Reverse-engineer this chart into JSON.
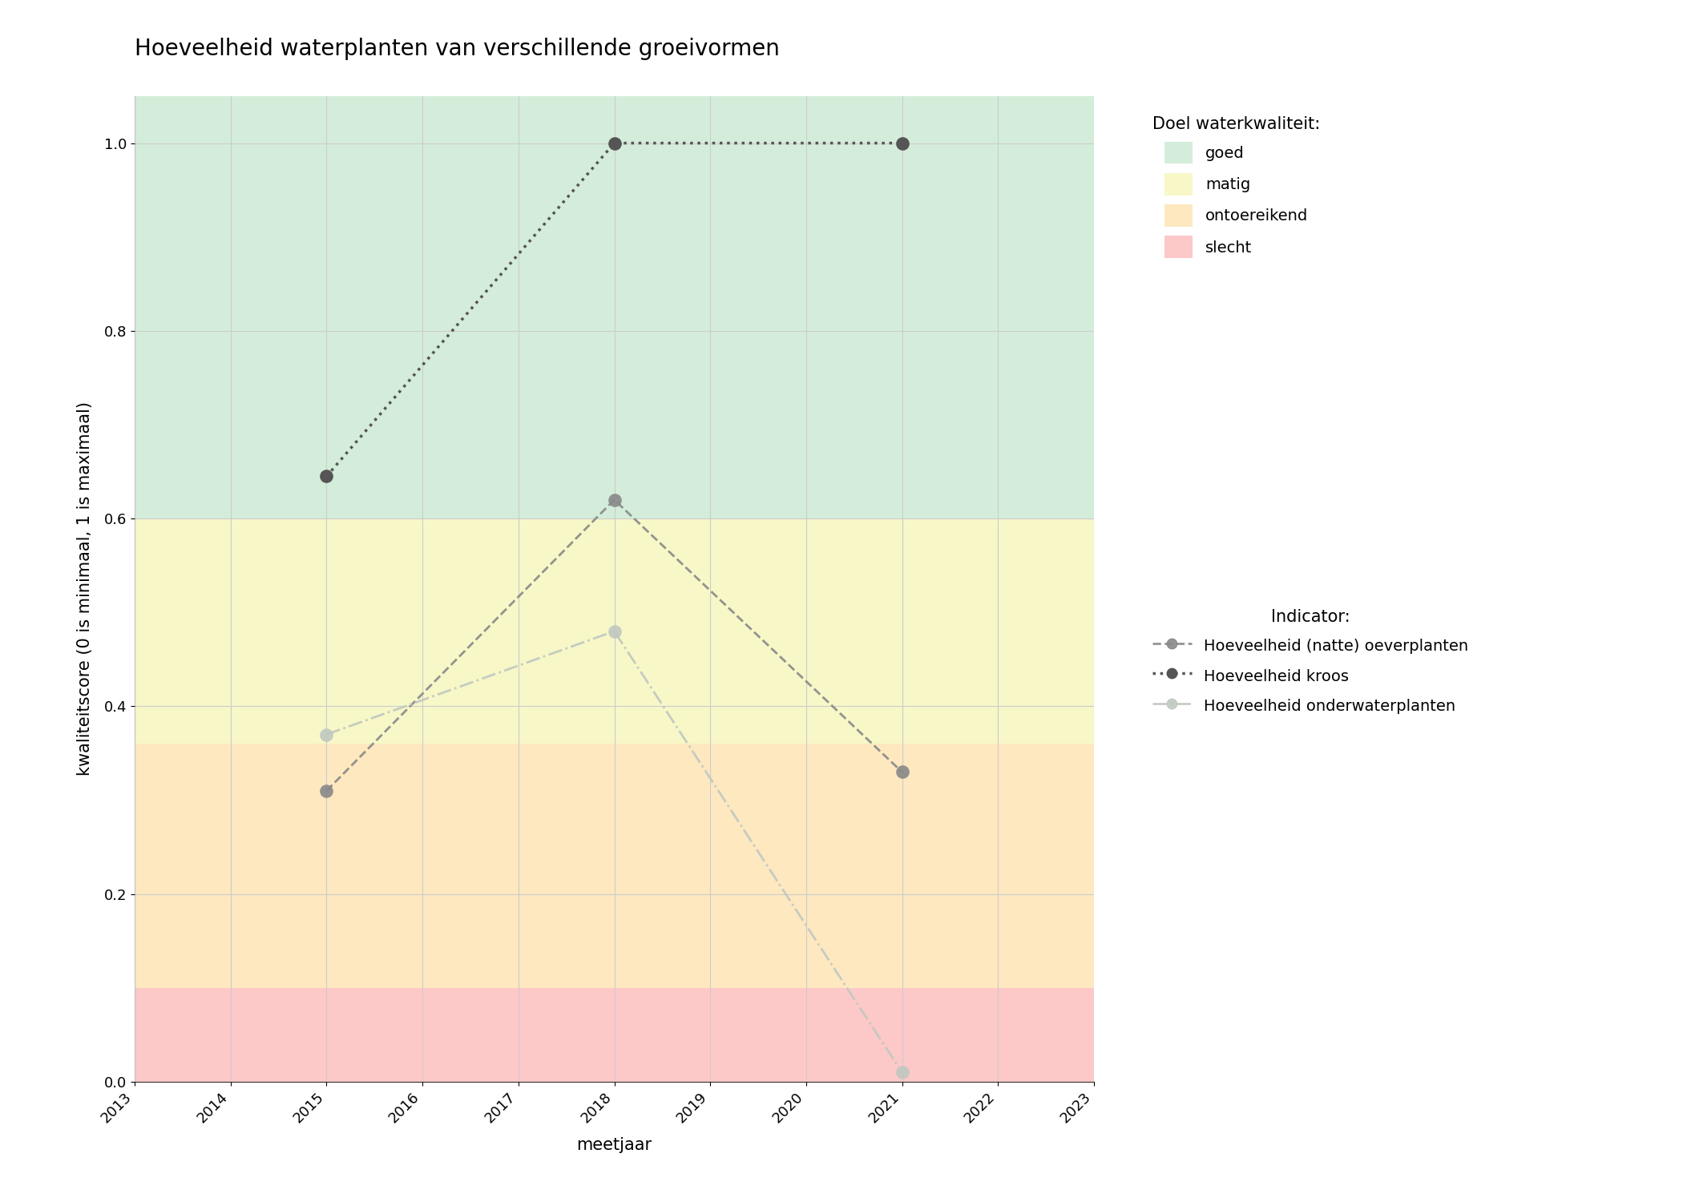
{
  "title": "Hoeveelheid waterplanten van verschillende groeivormen",
  "xlabel": "meetjaar",
  "ylabel": "kwaliteitscore (0 is minimaal, 1 is maximaal)",
  "xlim": [
    2013,
    2023
  ],
  "ylim": [
    0,
    1.05
  ],
  "xticks": [
    2013,
    2014,
    2015,
    2016,
    2017,
    2018,
    2019,
    2020,
    2021,
    2022,
    2023
  ],
  "yticks": [
    0.0,
    0.2,
    0.4,
    0.6,
    0.8,
    1.0
  ],
  "bg_colors": {
    "goed": "#d4edda",
    "matig": "#f7f7c8",
    "ontoereikend": "#fde8c0",
    "slecht": "#fcc8c8"
  },
  "bg_ranges": {
    "goed": [
      0.6,
      1.05
    ],
    "matig": [
      0.36,
      0.6
    ],
    "ontoereikend": [
      0.1,
      0.36
    ],
    "slecht": [
      0.0,
      0.1
    ]
  },
  "series": {
    "oeverplanten": {
      "years": [
        2015,
        2018,
        2021
      ],
      "values": [
        0.31,
        0.62,
        0.33
      ],
      "color": "#888888",
      "linestyle": "--",
      "marker": "o",
      "markersize": 12,
      "linewidth": 2.0,
      "label": "Hoeveelheid (natte) oeverplanten",
      "alpha": 0.9
    },
    "kroos": {
      "years": [
        2015,
        2018,
        2021
      ],
      "values": [
        0.645,
        1.0,
        1.0
      ],
      "color": "#555555",
      "linestyle": ":",
      "marker": "o",
      "markersize": 12,
      "linewidth": 2.5,
      "label": "Hoeveelheid kroos",
      "alpha": 1.0
    },
    "onderwaterplanten": {
      "years": [
        2015,
        2018,
        2021
      ],
      "values": [
        0.37,
        0.48,
        0.01
      ],
      "color": "#c0c8c0",
      "linestyle": "-.",
      "marker": "o",
      "markersize": 12,
      "linewidth": 2.0,
      "label": "Hoeveelheid onderwaterplanten",
      "alpha": 0.9
    }
  },
  "legend_bg_labels": [
    "goed",
    "matig",
    "ontoereikend",
    "slecht"
  ],
  "legend_bg_colors": [
    "#d4edda",
    "#f7f7c8",
    "#fde8c0",
    "#fcc8c8"
  ],
  "grid_color": "#cccccc",
  "background_color": "#ffffff",
  "title_fontsize": 20,
  "label_fontsize": 15,
  "tick_fontsize": 13,
  "legend_fontsize": 14
}
